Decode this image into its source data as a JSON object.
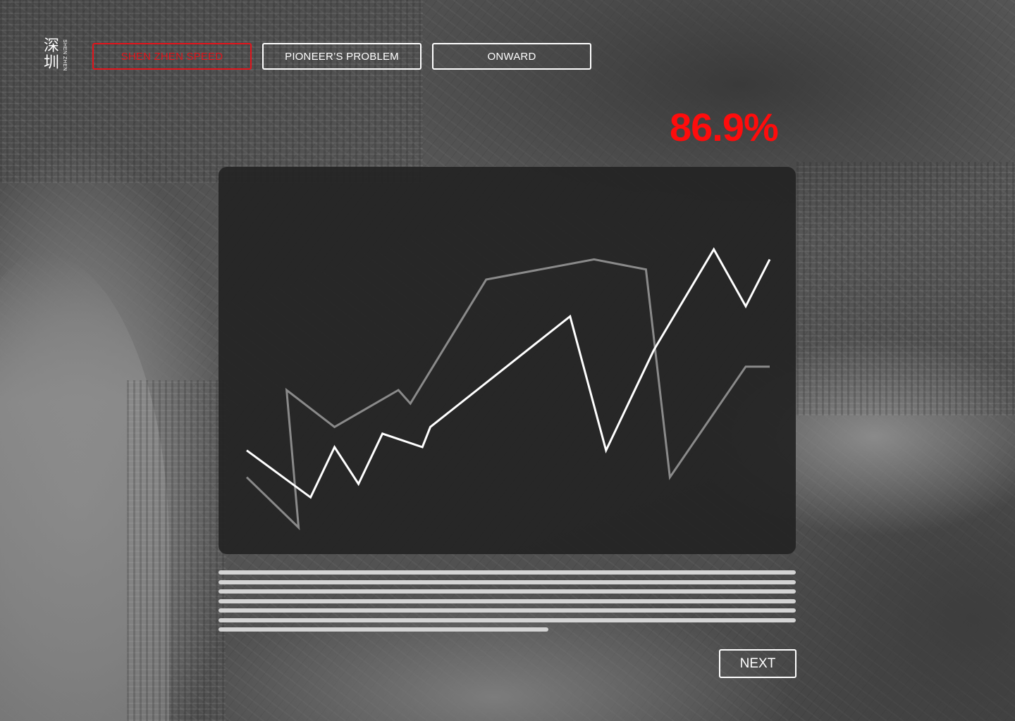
{
  "logo": {
    "chinese_char_1": "深",
    "chinese_char_2": "圳",
    "english": "SHEN ZHEN"
  },
  "nav": {
    "tabs": [
      {
        "label": "SHEN ZHEN SPEED",
        "active": true
      },
      {
        "label": "PIONEER’S PROBLEM",
        "active": false
      },
      {
        "label": "ONWARD",
        "active": false
      }
    ]
  },
  "stat": {
    "value": "86.9%",
    "color": "#ff0c0c"
  },
  "colors": {
    "accent": "#e3141b",
    "panel": "#232323",
    "line_primary": "#ffffff",
    "line_secondary": "#8a8a8a"
  },
  "chart_data": {
    "type": "line",
    "title": "",
    "xlabel": "",
    "ylabel": "",
    "x": [
      0,
      1,
      2,
      3,
      4,
      5,
      6,
      7,
      8,
      9,
      10,
      11,
      12,
      13,
      14,
      15
    ],
    "ylim": [
      0,
      100
    ],
    "grid": false,
    "series": [
      {
        "values": [
          28,
          14,
          29,
          18,
          33,
          29,
          35,
          68,
          28,
          58,
          88,
          71,
          85
        ],
        "x": [
          0,
          1.6,
          2.2,
          2.8,
          3.4,
          4.4,
          4.6,
          8.1,
          9.0,
          10.2,
          11.7,
          12.5,
          13.1
        ],
        "style": "primary"
      },
      {
        "values": [
          20,
          5,
          46,
          35,
          46,
          42,
          79,
          85,
          82,
          20,
          53,
          53
        ],
        "x": [
          0,
          1.3,
          1.0,
          2.2,
          3.8,
          4.1,
          6.0,
          8.7,
          10.0,
          10.6,
          12.5,
          13.1
        ],
        "style": "secondary"
      }
    ]
  },
  "body_text_lines": 7,
  "footer": {
    "next_label": "NEXT"
  }
}
